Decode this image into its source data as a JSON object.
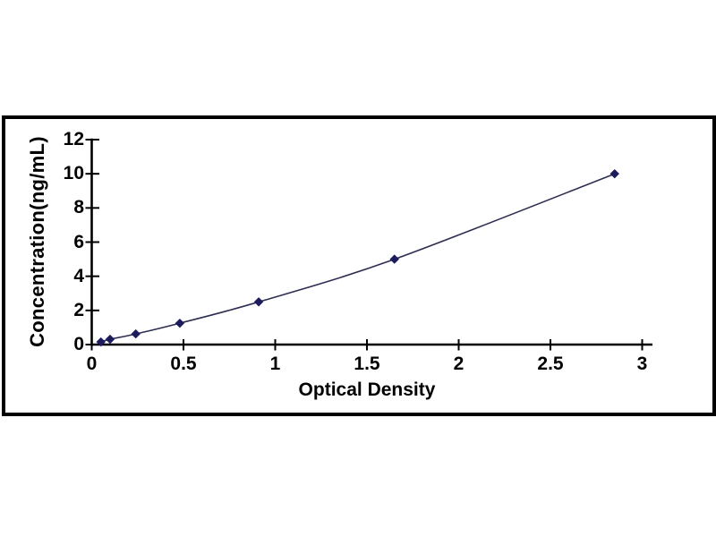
{
  "chart_data": {
    "type": "line",
    "title": "",
    "xlabel": "Optical Density",
    "ylabel": "Concentration(ng/mL)",
    "x": [
      0.05,
      0.1,
      0.24,
      0.48,
      0.91,
      1.65,
      2.85
    ],
    "y": [
      0.156,
      0.312,
      0.625,
      1.25,
      2.5,
      5,
      10
    ],
    "xlim": [
      0,
      3.05
    ],
    "ylim": [
      0,
      12
    ],
    "xticks": [
      0,
      0.5,
      1,
      1.5,
      2,
      2.5,
      3
    ],
    "xtick_labels": [
      "0",
      "0.5",
      "1",
      "1.5",
      "2",
      "2.5",
      "3"
    ],
    "yticks": [
      0,
      2,
      4,
      6,
      8,
      10,
      12
    ],
    "ytick_labels": [
      "0",
      "2",
      "4",
      "6",
      "8",
      "10",
      "12"
    ],
    "grid": false,
    "legend": "none",
    "marker": "diamond",
    "curve_style": "smooth",
    "colors": {
      "line": "#2e2e52",
      "marker": "#1b1b5e",
      "axis": "#000000",
      "border": "#000000",
      "text": "#000000",
      "background": "#ffffff"
    }
  }
}
